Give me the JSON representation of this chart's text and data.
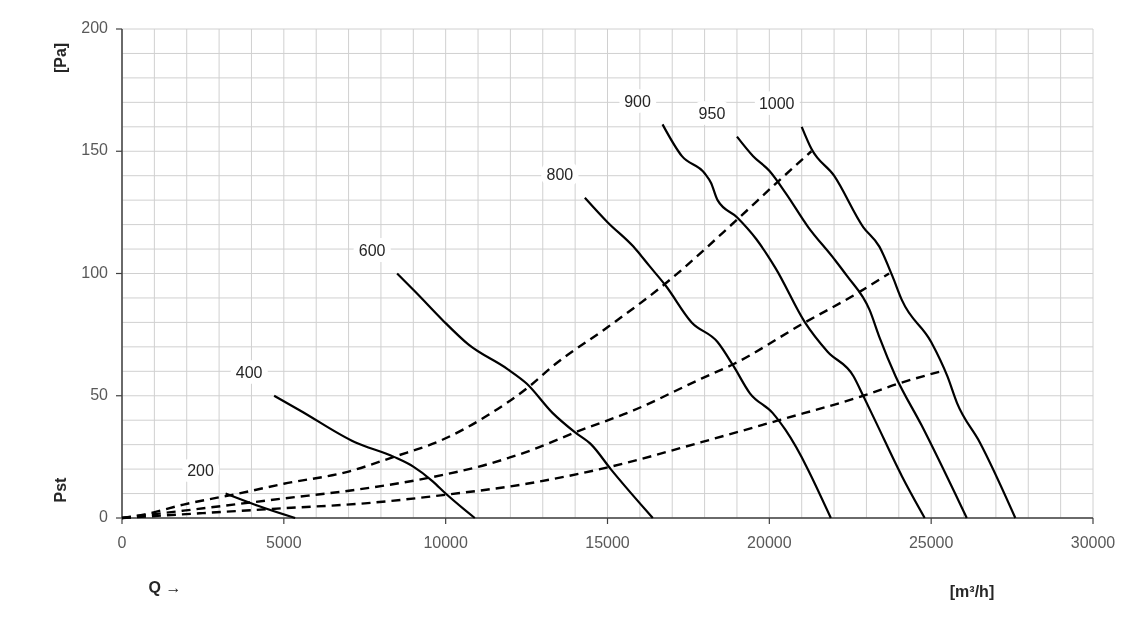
{
  "chart_data": {
    "type": "line",
    "xlabel": "Q →",
    "ylabel": "Pst",
    "annotations": [
      "[m³/h]",
      "[Pa]"
    ],
    "xlim": [
      0,
      30000
    ],
    "ylim": [
      0,
      200
    ],
    "xticks": [
      0,
      {
        "value": 1000,
        "label": null
      },
      {
        "value": 2000,
        "label": null
      },
      {
        "value": 3000,
        "label": null
      },
      {
        "value": 4000,
        "label": null
      },
      5000,
      {
        "value": 6000,
        "label": null
      },
      {
        "value": 7000,
        "label": null
      },
      {
        "value": 8000,
        "label": null
      },
      {
        "value": 9000,
        "label": null
      },
      10000,
      {
        "value": 11000,
        "label": null
      },
      {
        "value": 12000,
        "label": null
      },
      {
        "value": 13000,
        "label": null
      },
      {
        "value": 14000,
        "label": null
      },
      15000,
      {
        "value": 16000,
        "label": null
      },
      {
        "value": 17000,
        "label": null
      },
      {
        "value": 18000,
        "label": null
      },
      {
        "value": 19000,
        "label": null
      },
      20000,
      {
        "value": 21000,
        "label": null
      },
      {
        "value": 22000,
        "label": null
      },
      {
        "value": 23000,
        "label": null
      },
      {
        "value": 24000,
        "label": null
      },
      25000,
      {
        "value": 26000,
        "label": null
      },
      {
        "value": 27000,
        "label": null
      },
      {
        "value": 28000,
        "label": null
      },
      {
        "value": 29000,
        "label": null
      },
      30000
    ],
    "yticks": [
      0,
      {
        "value": 10,
        "label": null
      },
      {
        "value": 20,
        "label": null
      },
      {
        "value": 30,
        "label": null
      },
      {
        "value": 40,
        "label": null
      },
      50,
      {
        "value": 60,
        "label": null
      },
      {
        "value": 70,
        "label": null
      },
      {
        "value": 80,
        "label": null
      },
      {
        "value": 90,
        "label": null
      },
      100,
      {
        "value": 110,
        "label": null
      },
      {
        "value": 120,
        "label": null
      },
      {
        "value": 130,
        "label": null
      },
      {
        "value": 140,
        "label": null
      },
      150,
      {
        "value": 160,
        "label": null
      },
      {
        "value": 170,
        "label": null
      },
      {
        "value": 180,
        "label": null
      },
      {
        "value": 190,
        "label": null
      },
      200
    ],
    "grid": true,
    "series": [
      {
        "name": "200",
        "color": "#000000",
        "line_style": "solid",
        "x": [
          3200,
          4200,
          5350
        ],
        "values": [
          10,
          5,
          0
        ]
      },
      {
        "name": "400",
        "color": "#000000",
        "line_style": "solid",
        "x": [
          4700,
          5500,
          7200,
          8400,
          9000,
          9600,
          10000,
          10900
        ],
        "values": [
          50,
          44,
          31,
          25,
          21,
          15,
          10,
          0
        ]
      },
      {
        "name": "600",
        "color": "#000000",
        "line_style": "solid",
        "x": [
          8500,
          9100,
          9900,
          10700,
          11900,
          12500,
          13300,
          14000,
          14500,
          15100,
          16400
        ],
        "values": [
          100,
          92,
          81,
          71,
          61,
          55,
          43,
          35,
          30,
          20,
          0
        ]
      },
      {
        "name": "800",
        "color": "#000000",
        "line_style": "solid",
        "x": [
          14300,
          15000,
          15800,
          16300,
          16800,
          17600,
          18400,
          18900,
          19400,
          20100,
          20500,
          21900
        ],
        "values": [
          131,
          121,
          111,
          103,
          95,
          80,
          72,
          62,
          51,
          43,
          36,
          0
        ]
      },
      {
        "name": "900",
        "color": "#000000",
        "line_style": "solid",
        "x": [
          16700,
          17300,
          18000,
          18200,
          18400,
          19000,
          19600,
          20200,
          21100,
          21800,
          22600,
          22900,
          23300,
          24100,
          24800
        ],
        "values": [
          161,
          148,
          141,
          137,
          130,
          123,
          114,
          102,
          80,
          68,
          58,
          50,
          39,
          17,
          0
        ]
      },
      {
        "name": "950",
        "color": "#000000",
        "line_style": "solid",
        "x": [
          19000,
          19500,
          20000,
          20500,
          21200,
          22000,
          22400,
          23100,
          23400,
          23900,
          24700,
          26100
        ],
        "values": [
          156,
          148,
          142,
          133,
          119,
          106,
          99,
          85,
          74,
          58,
          38,
          0
        ]
      },
      {
        "name": "1000",
        "color": "#000000",
        "line_style": "solid",
        "x": [
          21000,
          21300,
          22000,
          22900,
          23400,
          23800,
          24100,
          25000,
          25500,
          25800,
          26500,
          27600
        ],
        "values": [
          160,
          151,
          140,
          119,
          111,
          99,
          89,
          72,
          58,
          47,
          31,
          0
        ]
      },
      {
        "color": "#000000",
        "line_style": "dashed",
        "x": [
          0,
          700,
          1900,
          3600,
          5000,
          7000,
          8400,
          9900,
          11300,
          12600,
          13300,
          15000,
          16800,
          19000,
          20300,
          21300
        ],
        "values": [
          0,
          1.5,
          5.5,
          10,
          14,
          19,
          25,
          32,
          42,
          54,
          62,
          78,
          96,
          122,
          138,
          150
        ]
      },
      {
        "color": "#000000",
        "line_style": "dashed",
        "x": [
          0,
          1900,
          5000,
          7200,
          9500,
          11300,
          12700,
          14000,
          15800,
          17900,
          18900,
          21100,
          22600,
          23700
        ],
        "values": [
          0,
          3,
          8,
          11.5,
          16.5,
          22,
          28,
          35,
          44,
          57,
          63,
          80,
          91,
          100
        ]
      },
      {
        "color": "#000000",
        "line_style": "dashed",
        "x": [
          0,
          2500,
          5000,
          7500,
          10000,
          12500,
          15100,
          17900,
          20300,
          22900,
          24000,
          25300
        ],
        "values": [
          0,
          2,
          4,
          6,
          9.5,
          14,
          21,
          31,
          40,
          50,
          55,
          60
        ]
      }
    ]
  }
}
